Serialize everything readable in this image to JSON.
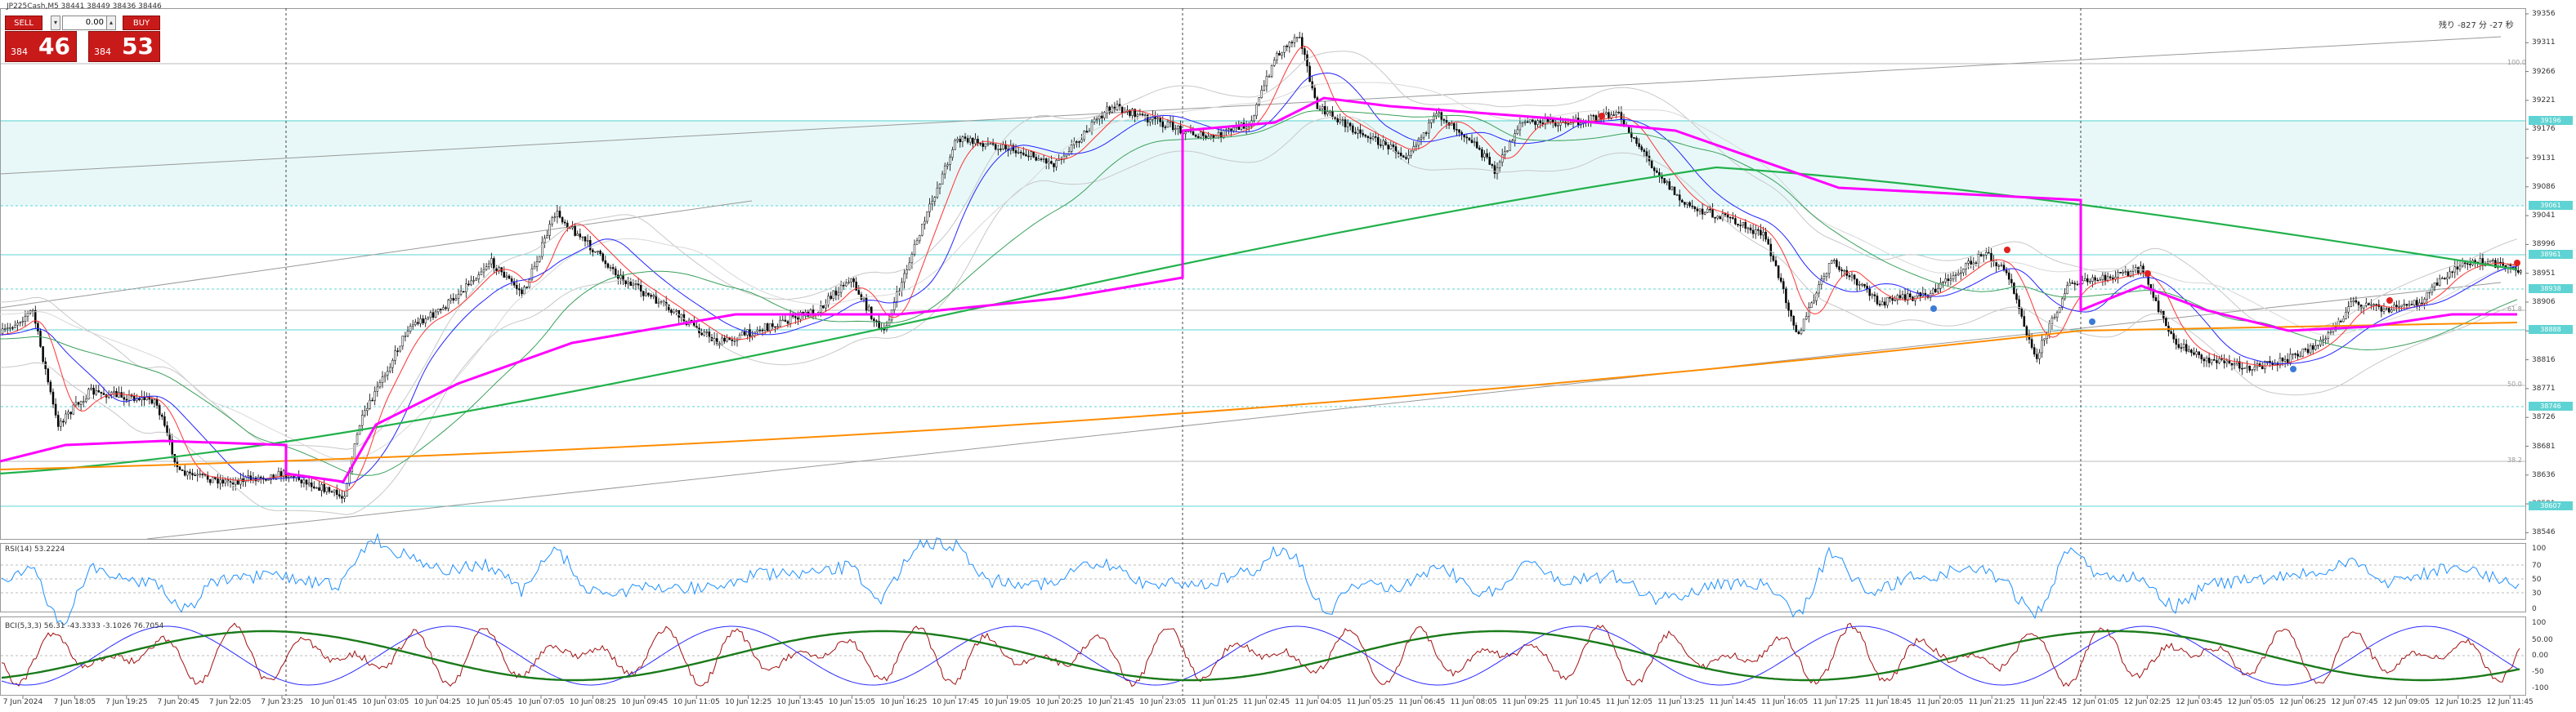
{
  "symbol_header": "JP225Cash,M5  38441 38449 38436 38446",
  "top_right_info": "残り -827 分 -27 秒",
  "trade_panel": {
    "sell_label": "SELL",
    "buy_label": "BUY",
    "lot_value": "0.00",
    "sell_price_small": "384",
    "sell_price_big": "46",
    "buy_price_small": "384",
    "buy_price_big": "53",
    "colors": {
      "button": "#c91a1a"
    }
  },
  "price_axis": [
    "39356",
    "39311",
    "39266",
    "39221",
    "39176",
    "39131",
    "39086",
    "39041",
    "38996",
    "38951",
    "38906",
    "38861",
    "38816",
    "38771",
    "38726",
    "38681",
    "38636",
    "38591",
    "38546"
  ],
  "price_tags": [
    {
      "text": "39196",
      "color": "#5fd3d3"
    },
    {
      "text": "39061",
      "color": "#5fd3d3"
    },
    {
      "text": "38961",
      "color": "#5fd3d3"
    },
    {
      "text": "38938",
      "color": "#5fd3d3"
    },
    {
      "text": "38888",
      "color": "#5fd3d3"
    },
    {
      "text": "38746",
      "color": "#5fd3d3"
    },
    {
      "text": "38607",
      "color": "#5fd3d3"
    }
  ],
  "fibo_labels": [
    "100.0",
    "61.8",
    "50.0",
    "38.2"
  ],
  "time_axis": [
    "7 Jun 2024",
    "7 Jun 18:05",
    "7 Jun 19:25",
    "7 Jun 20:45",
    "7 Jun 22:05",
    "7 Jun 23:25",
    "10 Jun 01:45",
    "10 Jun 03:05",
    "10 Jun 04:25",
    "10 Jun 05:45",
    "10 Jun 07:05",
    "10 Jun 08:25",
    "10 Jun 09:45",
    "10 Jun 11:05",
    "10 Jun 12:25",
    "10 Jun 13:45",
    "10 Jun 15:05",
    "10 Jun 16:25",
    "10 Jun 17:45",
    "10 Jun 19:05",
    "10 Jun 20:25",
    "10 Jun 21:45",
    "10 Jun 23:05",
    "11 Jun 01:25",
    "11 Jun 02:45",
    "11 Jun 04:05",
    "11 Jun 05:25",
    "11 Jun 06:45",
    "11 Jun 08:05",
    "11 Jun 09:25",
    "11 Jun 10:45",
    "11 Jun 12:05",
    "11 Jun 13:25",
    "11 Jun 14:45",
    "11 Jun 16:05",
    "11 Jun 17:25",
    "11 Jun 18:45",
    "11 Jun 20:05",
    "11 Jun 21:25",
    "11 Jun 22:45",
    "12 Jun 01:05",
    "12 Jun 02:25",
    "12 Jun 03:45",
    "12 Jun 05:05",
    "12 Jun 06:25",
    "12 Jun 07:45",
    "12 Jun 09:05",
    "12 Jun 10:25",
    "12 Jun 11:45"
  ],
  "rsi": {
    "label": "RSI(14) 53.2224",
    "axis": [
      "100",
      "70",
      "50",
      "30",
      "0"
    ]
  },
  "stoch": {
    "label": "BCI(5,3,3) 56.31 -43.3333 -3.1026 76.7054",
    "axis": [
      "100",
      "50.00",
      "0.00",
      "-50",
      "-100"
    ]
  },
  "colors": {
    "band_fill": "#e8f8f8",
    "ma_magenta": "#ff00ff",
    "ma_green": "#22b14c",
    "ma_orange": "#ff8c00",
    "ma_blue": "#2424ff",
    "ma_red": "#ff3333",
    "rsi_line": "#1e90ff",
    "stoch_green": "#1a7a1a",
    "stoch_red": "#a01010",
    "stoch_blue": "#2a2aff"
  }
}
